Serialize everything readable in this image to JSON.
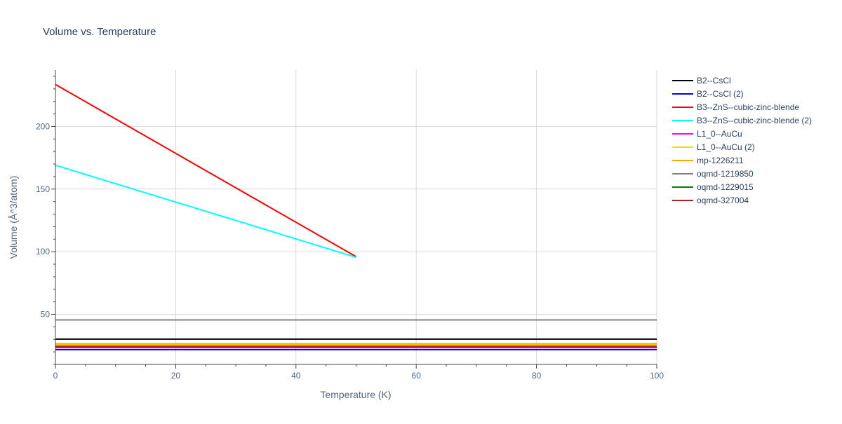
{
  "chart_data": {
    "type": "line",
    "title": "Volume vs. Temperature",
    "xlabel": "Temperature (K)",
    "ylabel": "Volume (Å^3/atom)",
    "xlim": [
      0,
      100
    ],
    "ylim": [
      10,
      245
    ],
    "x_ticks": [
      0,
      20,
      40,
      60,
      80,
      100
    ],
    "y_ticks": [
      50,
      100,
      150,
      200
    ],
    "grid": true,
    "legend_position": "right",
    "series": [
      {
        "name": "B2--CsCl",
        "color": "#000000",
        "x": [
          0,
          100
        ],
        "y": [
          30.2,
          30.2
        ]
      },
      {
        "name": "B2--CsCl (2)",
        "color": "#0000ff",
        "x": [
          0,
          100
        ],
        "y": [
          21.8,
          21.8
        ]
      },
      {
        "name": "B3--ZnS--cubic-zinc-blende",
        "color": "#ff0000",
        "x": [
          0,
          50
        ],
        "y": [
          233.5,
          96.0
        ]
      },
      {
        "name": "B3--ZnS--cubic-zinc-blende (2)",
        "color": "#00ffff",
        "x": [
          0,
          50
        ],
        "y": [
          169.0,
          95.5
        ]
      },
      {
        "name": "L1_0--AuCu",
        "color": "#ff00ff",
        "x": [
          0,
          100
        ],
        "y": [
          23.5,
          23.5
        ]
      },
      {
        "name": "L1_0--AuCu (2)",
        "color": "#ffd700",
        "x": [
          0,
          100
        ],
        "y": [
          25.5,
          25.5
        ]
      },
      {
        "name": "mp-1226211",
        "color": "#ffa500",
        "x": [
          0,
          100
        ],
        "y": [
          26.5,
          26.5
        ]
      },
      {
        "name": "oqmd-1219850",
        "color": "#808080",
        "x": [
          0,
          100
        ],
        "y": [
          45.5,
          45.5
        ]
      },
      {
        "name": "oqmd-1229015",
        "color": "#008000",
        "x": [
          0,
          100
        ],
        "y": [
          24.5,
          24.5
        ]
      },
      {
        "name": "oqmd-327004",
        "color": "#b22222",
        "x": [
          0,
          100
        ],
        "y": [
          24.0,
          24.0
        ]
      }
    ]
  }
}
